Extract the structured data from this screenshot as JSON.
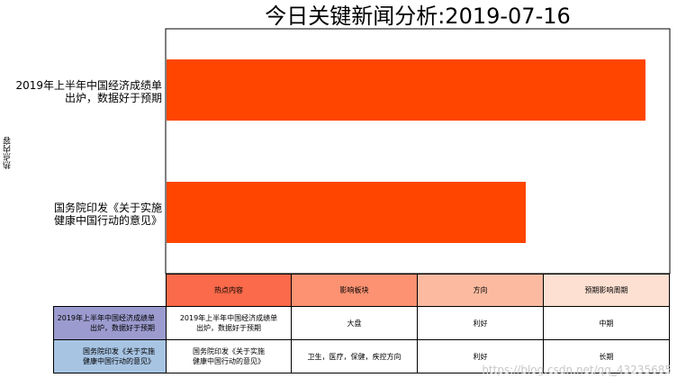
{
  "chart_data": {
    "type": "bar",
    "orientation": "horizontal",
    "title": "今日关键新闻分析:2019-07-16",
    "ylabel": "热点内容",
    "categories": [
      [
        "2019年上半年中国经济成绩单",
        "出炉，数据好于预期"
      ],
      [
        "国务院印发《关于实施",
        "健康中国行动的意见》"
      ]
    ],
    "values": [
      1.0,
      0.75
    ],
    "bar_color": "#ff4500",
    "table": {
      "col_labels": [
        "热点内容",
        "影响板块",
        "方向",
        "预期影响周期"
      ],
      "col_colors": [
        "#fb6a4a",
        "#fc9272",
        "#fcbba1",
        "#fee0d2"
      ],
      "row_labels": [
        [
          "2019年上半年中国经济成绩单",
          "出炉，数据好于预期"
        ],
        [
          "国务院印发《关于实施",
          "健康中国行动的意见》"
        ]
      ],
      "row_colors": [
        "#9b9bcf",
        "#a7c4e3"
      ],
      "rows": [
        {
          "content": [
            "2019年上半年中国经济成绩单",
            "出炉，数据好于预期"
          ],
          "sector": "大盘",
          "direction": "利好",
          "period": "中期"
        },
        {
          "content": [
            "国务院印发《关于实施",
            "健康中国行动的意见》"
          ],
          "sector": "卫生，医疗，保健，疾控方向",
          "direction": "利好",
          "period": "长期"
        }
      ]
    }
  },
  "watermark": "https://blog.csdn.net/qq_43235685"
}
